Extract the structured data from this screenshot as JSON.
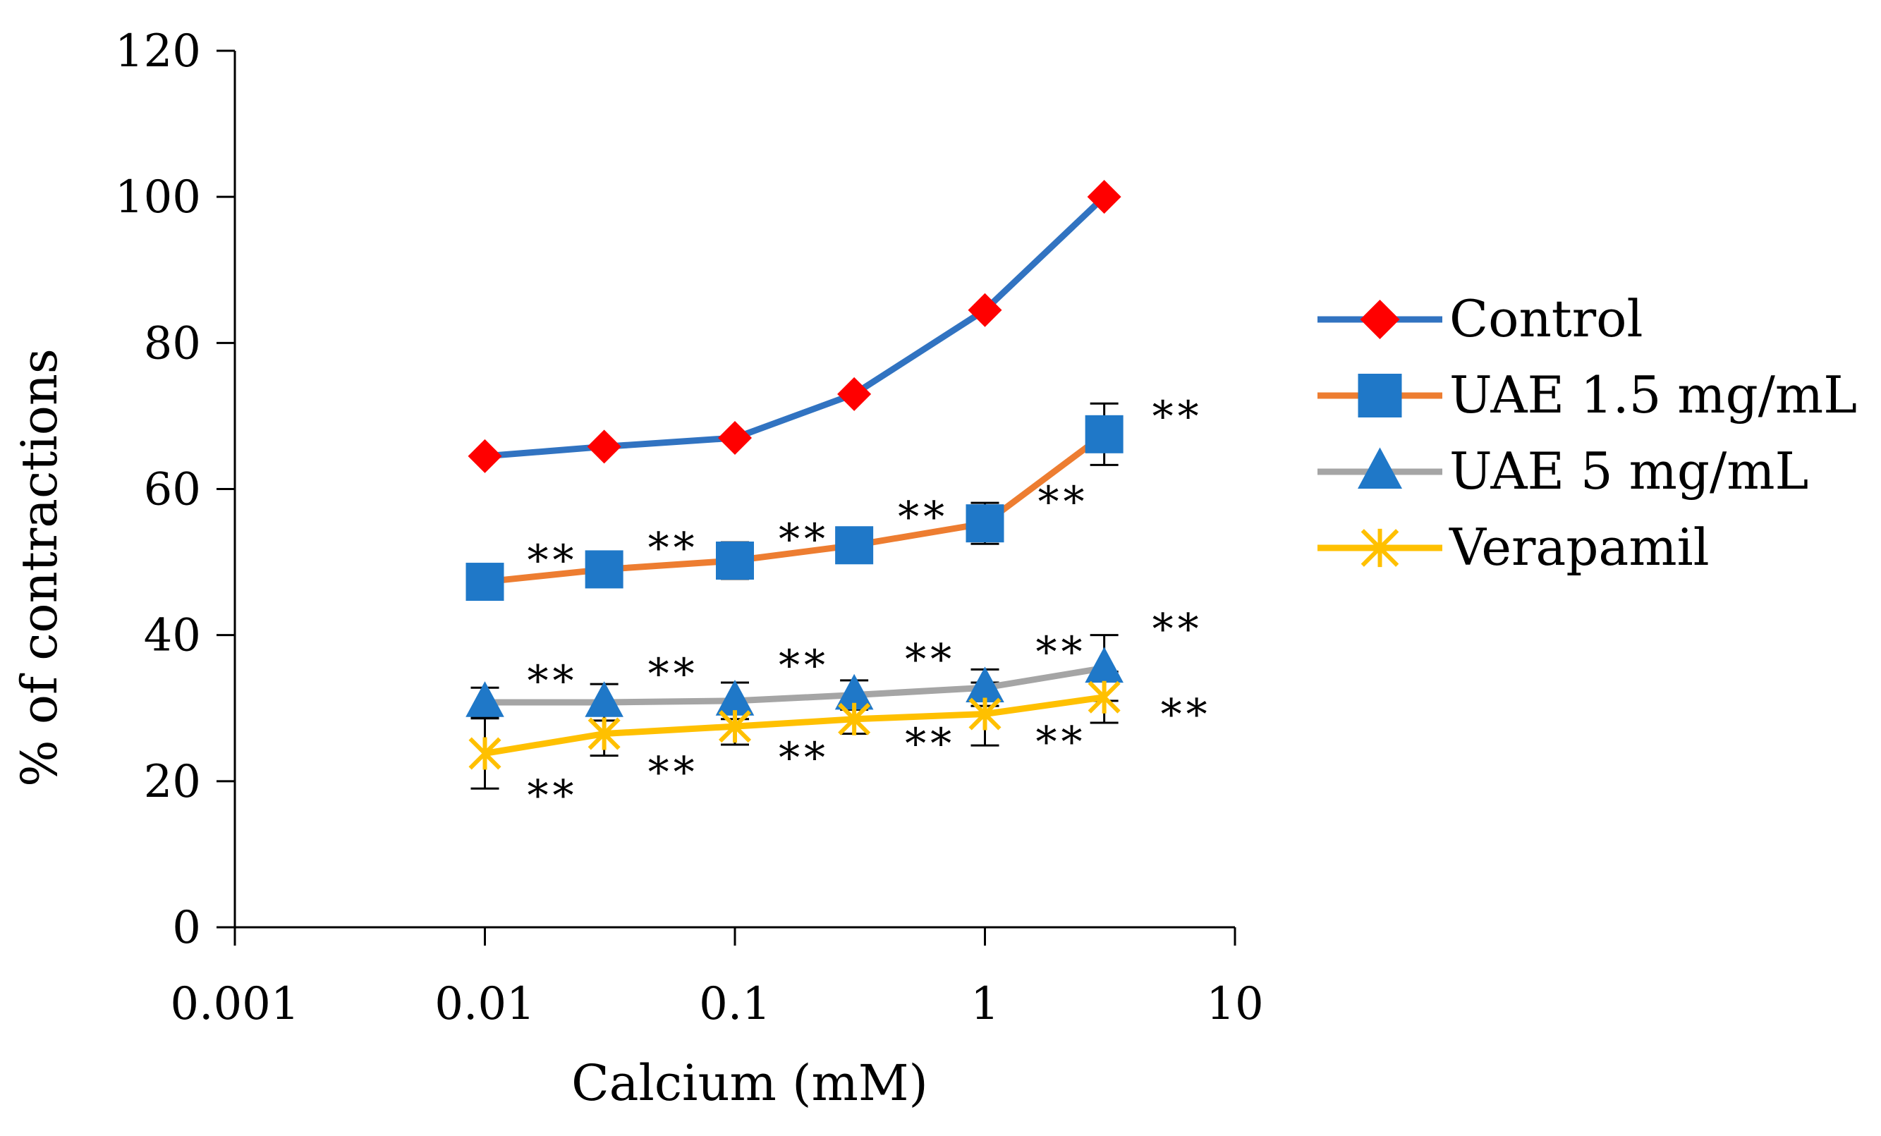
{
  "chart_data": {
    "type": "line",
    "xscale": "log",
    "xlabel": "Calcium (mM)",
    "ylabel": "% of contractions",
    "xlim": [
      0.001,
      10
    ],
    "ylim": [
      0,
      120
    ],
    "xticks": [
      "0.001",
      "0.01",
      "0.1",
      "1",
      "10"
    ],
    "xtick_values": [
      0.001,
      0.01,
      0.1,
      1,
      10
    ],
    "yticks": [
      "0",
      "20",
      "40",
      "60",
      "80",
      "100",
      "120"
    ],
    "ytick_values": [
      0,
      20,
      40,
      60,
      80,
      100,
      120
    ],
    "grid": false,
    "legend_position": "right",
    "x": [
      0.01,
      0.03,
      0.1,
      0.3,
      1,
      3
    ],
    "series": [
      {
        "name": "Control",
        "values": [
          64.5,
          65.8,
          67,
          73,
          84.5,
          100
        ],
        "errors": [
          0,
          0,
          0,
          0,
          0,
          0
        ],
        "line_color": "#3173C1",
        "marker": "diamond",
        "marker_color": "#FF0000",
        "significance": [
          "",
          "",
          "",
          "",
          "",
          ""
        ]
      },
      {
        "name": "UAE 1.5 mg/mL",
        "values": [
          47.3,
          49,
          50.2,
          52.3,
          55.3,
          67.5
        ],
        "errors": [
          1.5,
          1.2,
          2.5,
          1.8,
          2.8,
          4.2
        ],
        "line_color": "#ED7D31",
        "marker": "square",
        "marker_color": "#1F78C8",
        "significance": [
          "**",
          "**",
          "**",
          "**",
          "**",
          "**"
        ]
      },
      {
        "name": "UAE 5 mg/mL",
        "values": [
          30.8,
          30.8,
          31,
          31.8,
          32.8,
          35.5
        ],
        "errors": [
          2,
          2.5,
          2.5,
          2,
          2.5,
          4.5
        ],
        "line_color": "#A5A5A5",
        "marker": "triangle",
        "marker_color": "#1F78C8",
        "significance": [
          "**",
          "**",
          "**",
          "**",
          "**",
          "**"
        ]
      },
      {
        "name": "Verapamil",
        "values": [
          23.8,
          26.5,
          27.5,
          28.5,
          29.2,
          31.5
        ],
        "errors": [
          4.8,
          3,
          2.5,
          2,
          4.3,
          3.5
        ],
        "line_color": "#FFC000",
        "marker": "x",
        "marker_color": "#FFC000",
        "significance": [
          "**",
          "**",
          "**",
          "**",
          "**",
          "**"
        ]
      }
    ]
  }
}
